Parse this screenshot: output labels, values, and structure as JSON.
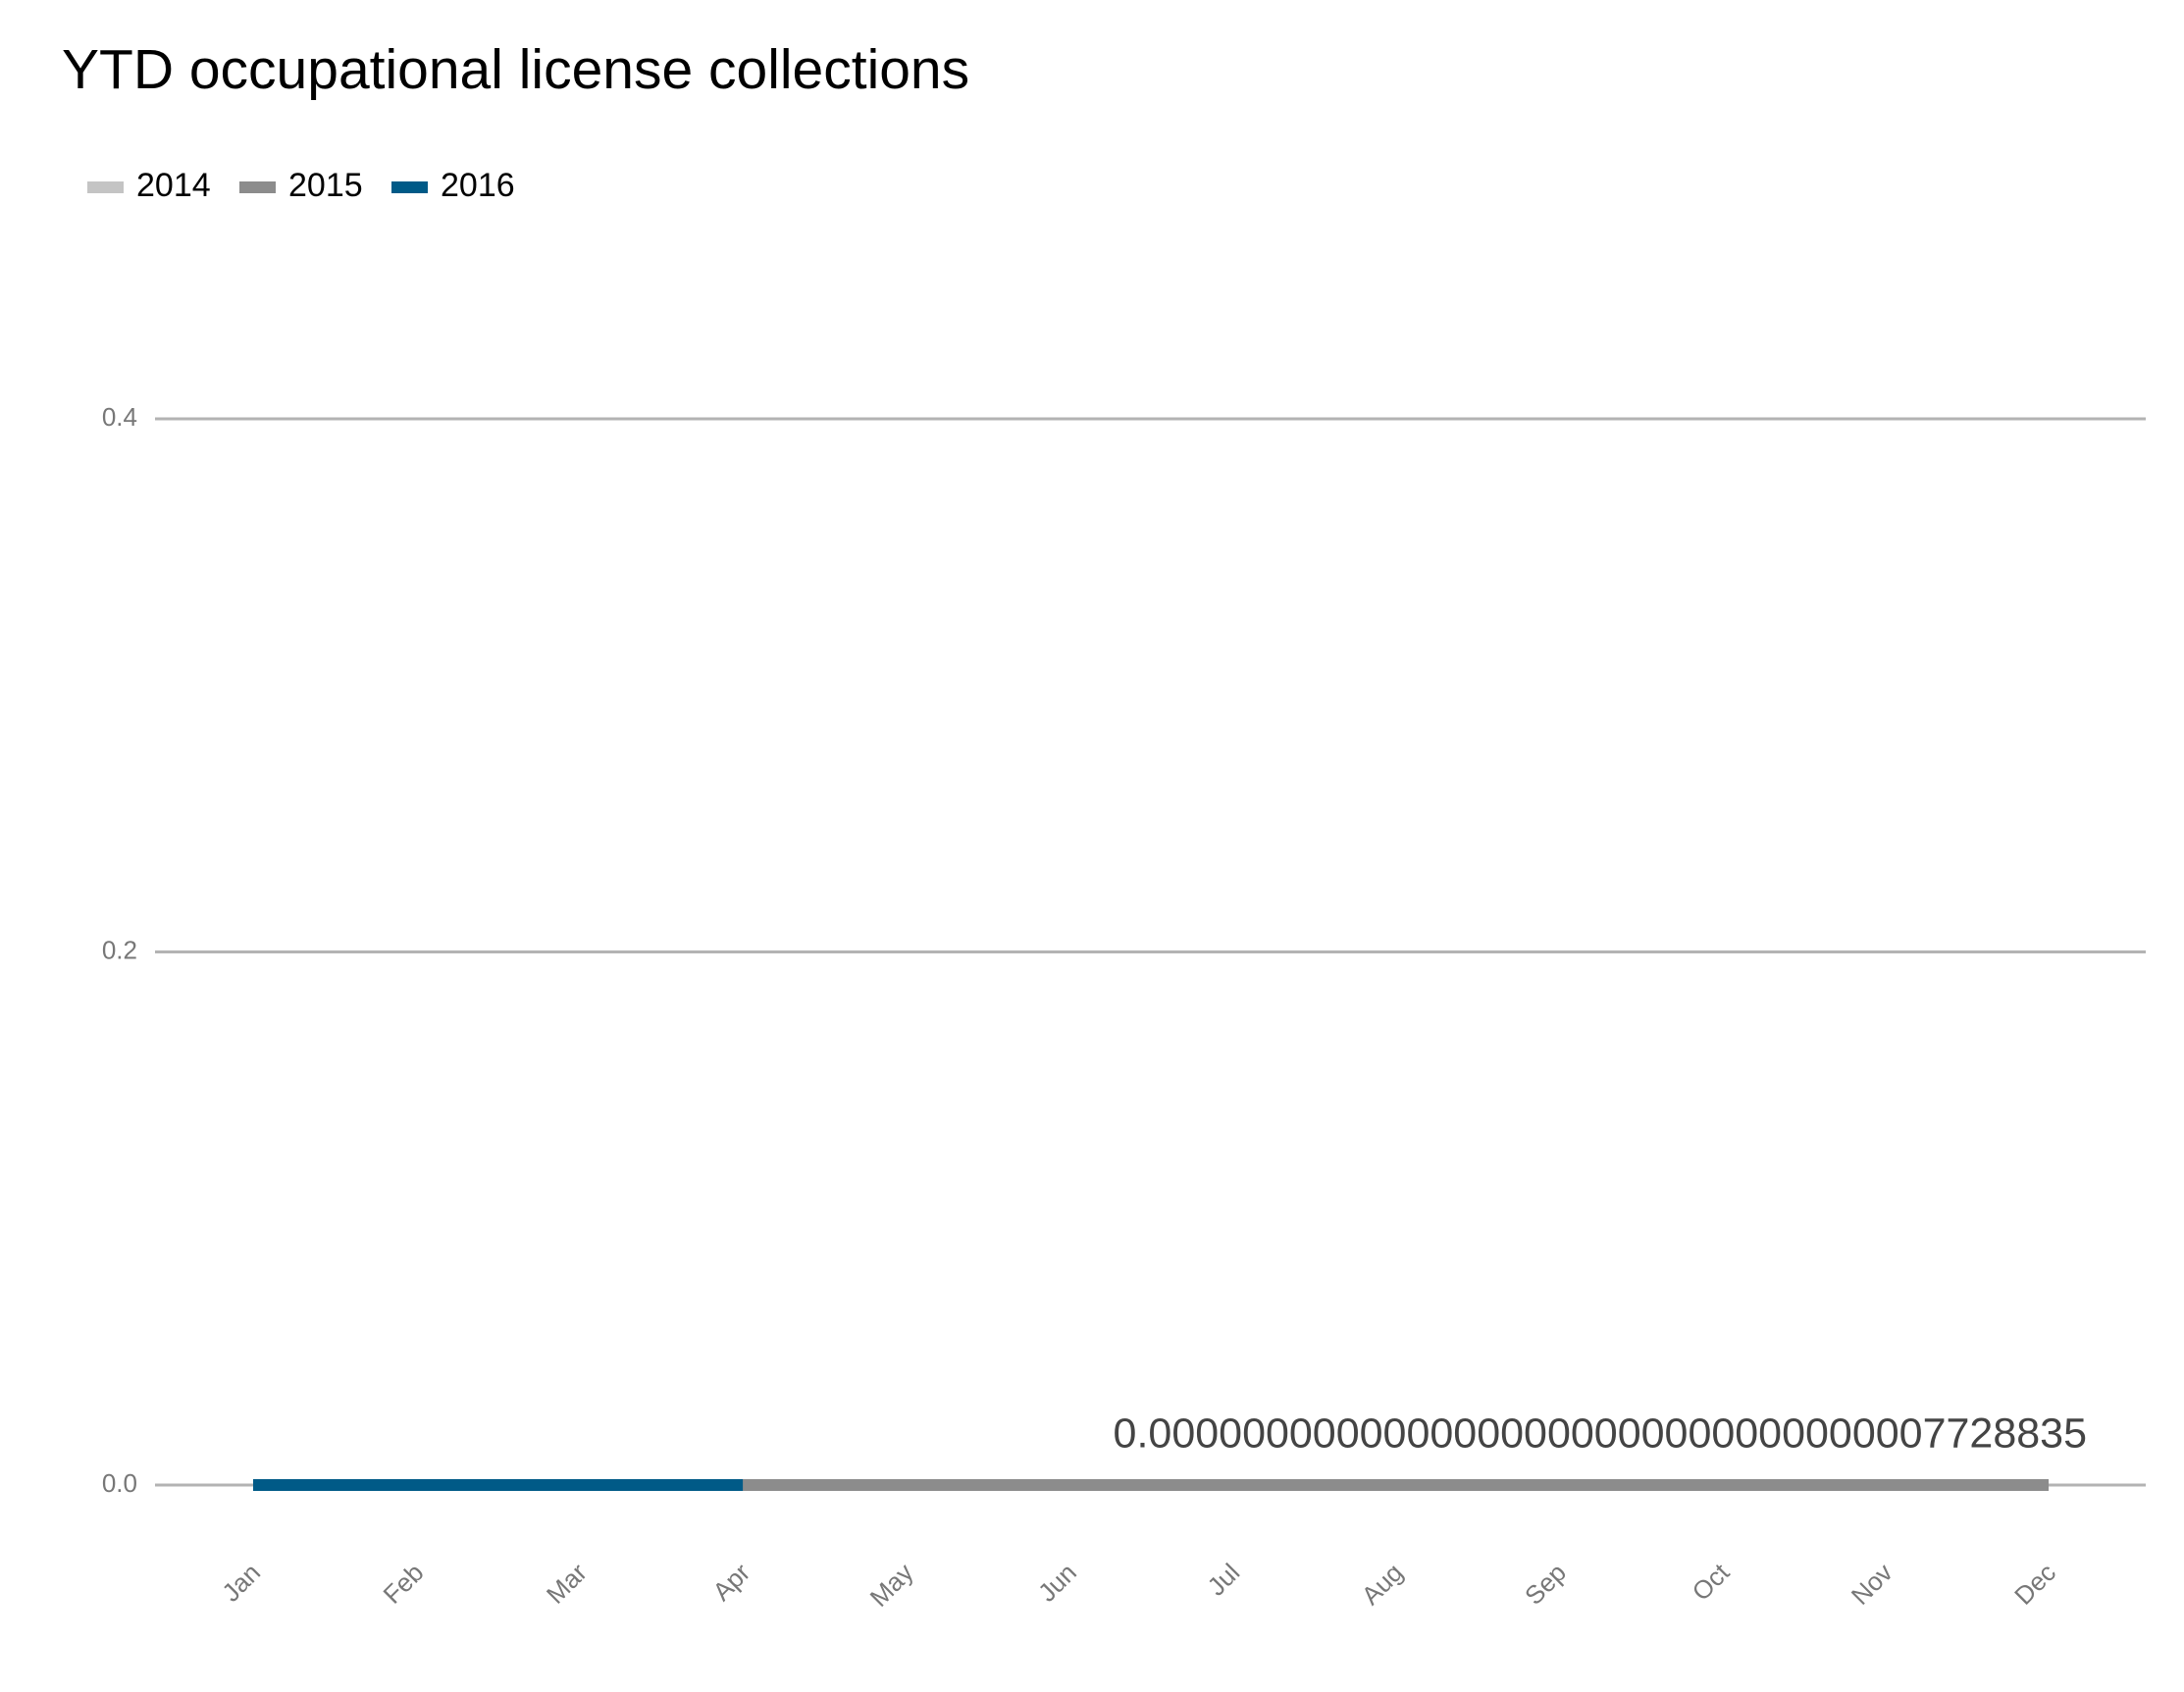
{
  "chart_data": {
    "type": "line",
    "title": "YTD occupational license collections",
    "categories": [
      "Jan",
      "Feb",
      "Mar",
      "Apr",
      "May",
      "Jun",
      "Jul",
      "Aug",
      "Sep",
      "Oct",
      "Nov",
      "Dec"
    ],
    "series": [
      {
        "name": "2014",
        "color": "#c4c4c4",
        "values": [
          0,
          0,
          0,
          0,
          0,
          0,
          0,
          0,
          0,
          0,
          0,
          0
        ]
      },
      {
        "name": "2015",
        "color": "#8c8c8c",
        "values": [
          0,
          0,
          0,
          0,
          0,
          0,
          0,
          0,
          0,
          0,
          0,
          0
        ]
      },
      {
        "name": "2016",
        "color": "#005a87",
        "values": [
          0,
          0,
          0,
          0,
          null,
          null,
          null,
          null,
          null,
          null,
          null,
          null
        ]
      }
    ],
    "ylim": [
      0,
      0.4
    ],
    "yticks": [
      {
        "value": 0,
        "label": "0.0"
      },
      0.2,
      0.4
    ],
    "grid": true,
    "legend": "top-left",
    "annotation": "0.0000000000000000000000000000000007728835"
  }
}
